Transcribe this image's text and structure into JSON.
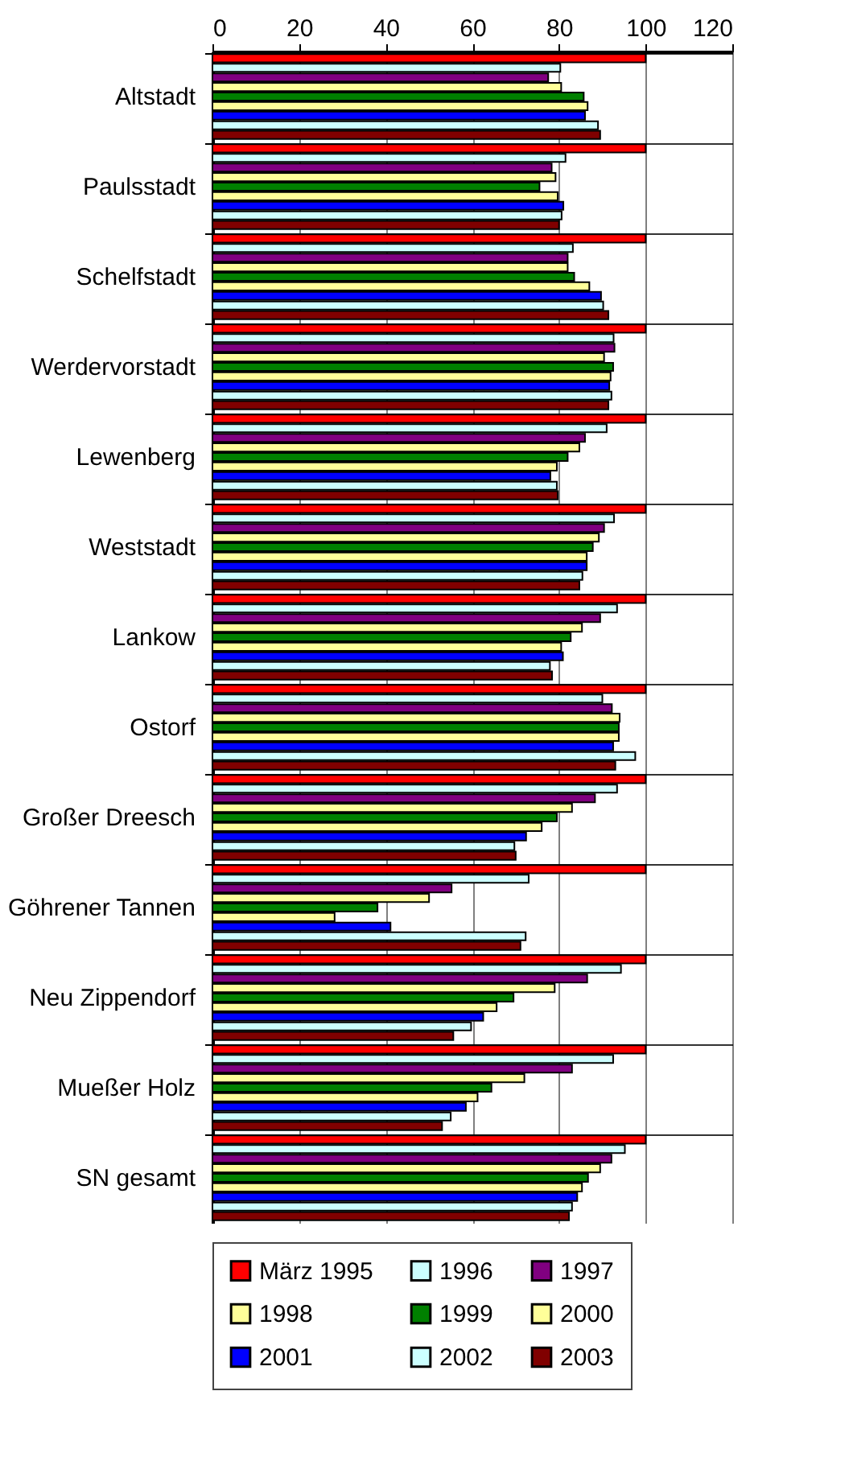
{
  "chart_data": {
    "type": "bar",
    "orientation": "horizontal",
    "categories": [
      "Altstadt",
      "Paulsstadt",
      "Schelfstadt",
      "Werdervorstadt",
      "Lewenberg",
      "Weststadt",
      "Lankow",
      "Ostorf",
      "Großer Dreesch",
      "Göhrener Tannen",
      "Neu Zippendorf",
      "Mueßer Holz",
      "SN gesamt"
    ],
    "series": [
      {
        "name": "März 1995",
        "color": "#ff0000",
        "values": [
          100,
          100,
          100,
          100,
          100,
          100,
          100,
          100,
          100,
          100,
          100,
          100,
          100
        ]
      },
      {
        "name": "1996",
        "color": "#ccffff",
        "values": [
          80.3,
          81.5,
          83.2,
          92.6,
          91,
          92.7,
          93.4,
          90,
          93.4,
          73,
          94.3,
          92.5,
          95.2
        ]
      },
      {
        "name": "1997",
        "color": "#800080",
        "values": [
          77.5,
          78.3,
          82,
          92.8,
          86,
          90.4,
          89.5,
          92.2,
          88.3,
          55.2,
          86.5,
          83,
          92.1
        ]
      },
      {
        "name": "1998",
        "color": "#ffff99",
        "values": [
          80.5,
          79.2,
          82,
          90.4,
          84.7,
          89.2,
          85.3,
          94,
          83,
          50,
          79,
          72,
          89.5
        ]
      },
      {
        "name": "1999",
        "color": "#008000",
        "values": [
          85.7,
          75.5,
          83.5,
          92.5,
          82,
          87.8,
          82.7,
          93.8,
          79.5,
          38.1,
          69.5,
          64.4,
          86.7
        ]
      },
      {
        "name": "2000",
        "color": "#ffff99",
        "values": [
          86.6,
          79.7,
          87,
          91.9,
          79.5,
          86.4,
          80.5,
          93.8,
          76,
          28.2,
          65.6,
          61.2,
          85.3
        ]
      },
      {
        "name": "2001",
        "color": "#0000ff",
        "values": [
          86,
          81,
          89.7,
          91.6,
          78,
          86.4,
          80.9,
          92.5,
          72.4,
          41.1,
          62.5,
          58.5,
          84.2
        ]
      },
      {
        "name": "2002",
        "color": "#ccffff",
        "values": [
          89,
          80.6,
          90.2,
          92.1,
          79.5,
          85.4,
          77.9,
          97.6,
          69.7,
          72.3,
          59.7,
          55,
          83
        ]
      },
      {
        "name": "2003",
        "color": "#800000",
        "values": [
          89.5,
          80,
          91.4,
          91.4,
          79.7,
          84.7,
          78.4,
          93,
          70,
          71.1,
          55.6,
          53,
          82.3
        ]
      }
    ],
    "xlim": [
      0,
      120
    ],
    "xticks": [
      0,
      20,
      40,
      60,
      80,
      100,
      120
    ],
    "grid": true,
    "legend": "bottom"
  }
}
